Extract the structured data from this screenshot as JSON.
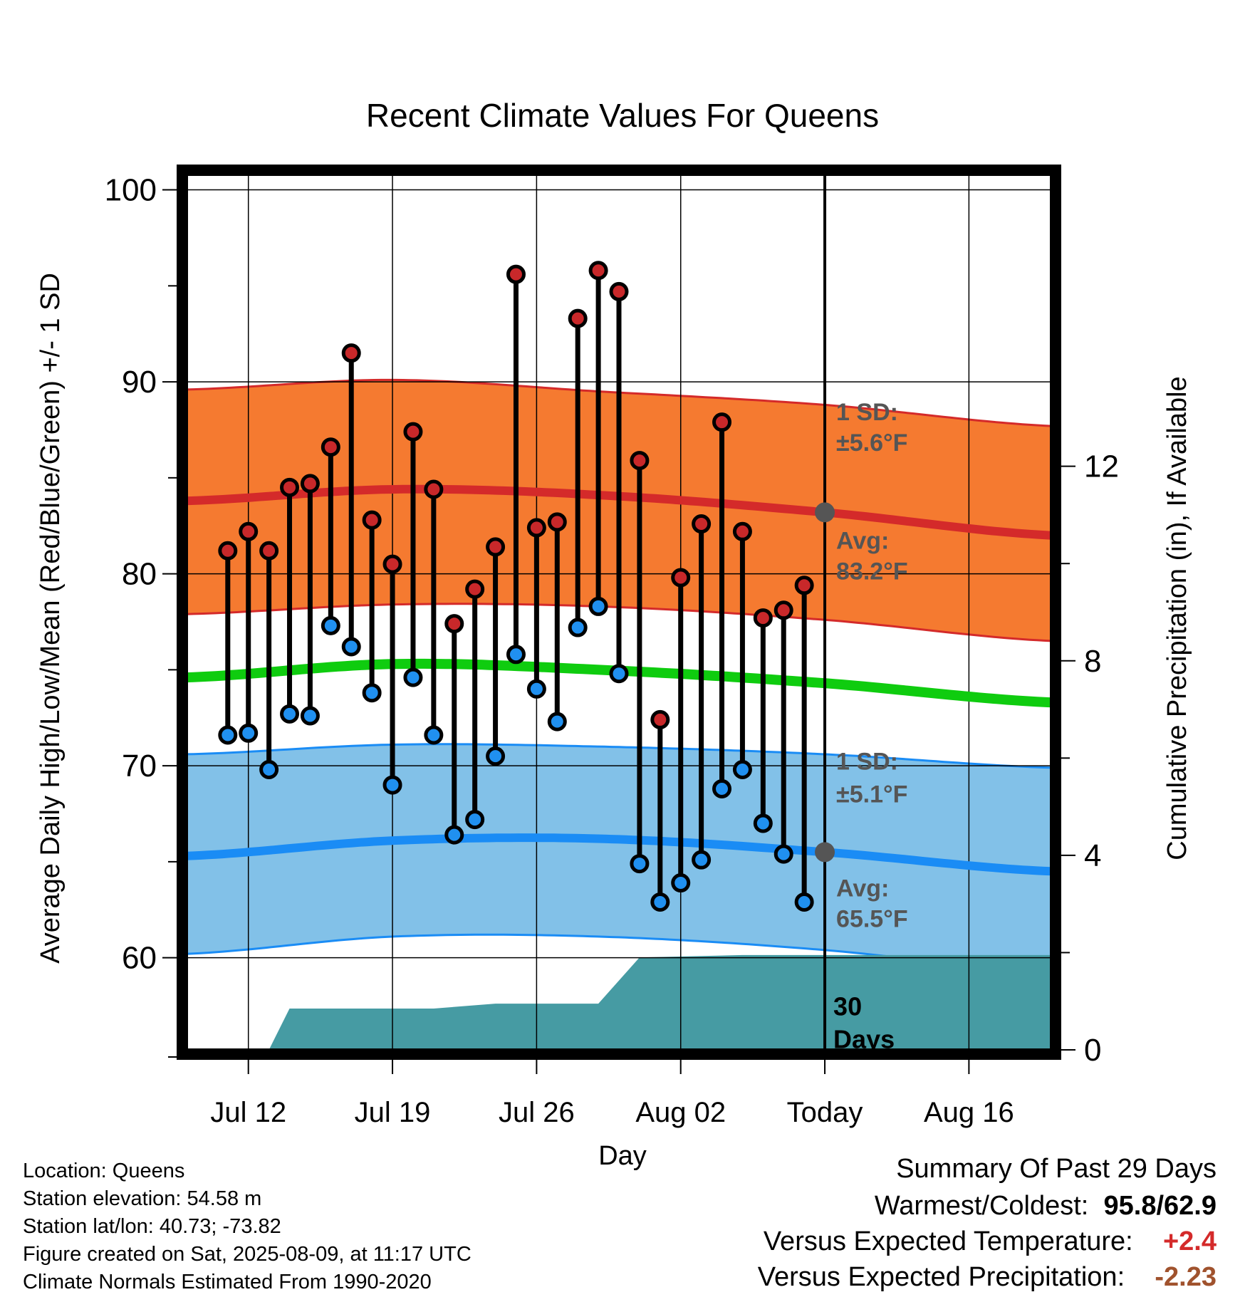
{
  "chart_data": {
    "type": "line",
    "title": "Recent Climate Values For Queens",
    "xlabel": "Day",
    "ylabel": "Average Daily High/Low/Mean (Red/Blue/Green) +/- 1 SD",
    "y2label": "Cumulative Precipitation (in), If Available",
    "ylim": [
      55.2,
      100.8
    ],
    "y2lim": [
      0,
      18
    ],
    "yticks": [
      60,
      70,
      80,
      90,
      100
    ],
    "y2ticks": [
      0,
      4,
      8,
      12
    ],
    "x_start": "Jul 09",
    "x_end": "Aug 20",
    "xticks": [
      "Jul 12",
      "Jul 19",
      "Jul 26",
      "Aug 02",
      "Today",
      "Aug 16"
    ],
    "today": "Aug 09",
    "grid": true,
    "normals": {
      "days": [
        "Jul 09",
        "Jul 19",
        "Jul 29",
        "Aug 09",
        "Aug 20"
      ],
      "high_avg": [
        83.8,
        84.4,
        84.1,
        83.2,
        82.0
      ],
      "high_sd_upper": [
        89.6,
        90.1,
        89.5,
        88.8,
        87.7
      ],
      "high_sd_lower": [
        77.9,
        78.4,
        78.3,
        77.6,
        76.5
      ],
      "mean_avg": [
        74.6,
        75.3,
        75.0,
        74.3,
        73.3
      ],
      "low_avg": [
        65.3,
        66.1,
        66.2,
        65.5,
        64.5
      ],
      "low_sd_upper": [
        70.6,
        71.1,
        71.0,
        70.6,
        69.9
      ],
      "low_sd_lower": [
        60.2,
        61.1,
        61.1,
        60.4,
        59.2
      ]
    },
    "series": [
      {
        "name": "High",
        "x": [
          "Jul 11",
          "Jul 12",
          "Jul 13",
          "Jul 14",
          "Jul 15",
          "Jul 16",
          "Jul 17",
          "Jul 18",
          "Jul 19",
          "Jul 20",
          "Jul 21",
          "Jul 22",
          "Jul 23",
          "Jul 24",
          "Jul 25",
          "Jul 26",
          "Jul 27",
          "Jul 28",
          "Jul 29",
          "Jul 30",
          "Jul 31",
          "Aug 01",
          "Aug 02",
          "Aug 03",
          "Aug 04",
          "Aug 05",
          "Aug 06",
          "Aug 07",
          "Aug 08"
        ],
        "values": [
          81.2,
          82.2,
          81.2,
          84.5,
          84.7,
          86.6,
          91.5,
          82.8,
          80.5,
          87.4,
          84.4,
          77.4,
          79.2,
          81.4,
          95.6,
          82.4,
          82.7,
          93.3,
          95.8,
          94.7,
          85.9,
          72.4,
          79.8,
          82.6,
          87.9,
          82.2,
          77.7,
          78.1,
          79.4
        ]
      },
      {
        "name": "Low",
        "x": [
          "Jul 11",
          "Jul 12",
          "Jul 13",
          "Jul 14",
          "Jul 15",
          "Jul 16",
          "Jul 17",
          "Jul 18",
          "Jul 19",
          "Jul 20",
          "Jul 21",
          "Jul 22",
          "Jul 23",
          "Jul 24",
          "Jul 25",
          "Jul 26",
          "Jul 27",
          "Jul 28",
          "Jul 29",
          "Jul 30",
          "Jul 31",
          "Aug 01",
          "Aug 02",
          "Aug 03",
          "Aug 04",
          "Aug 05",
          "Aug 06",
          "Aug 07",
          "Aug 08"
        ],
        "values": [
          71.6,
          71.7,
          69.8,
          72.7,
          72.6,
          77.3,
          76.2,
          73.8,
          69.0,
          74.6,
          71.6,
          66.4,
          67.2,
          70.5,
          75.8,
          74.0,
          72.3,
          77.2,
          78.3,
          74.8,
          64.9,
          62.9,
          63.9,
          65.1,
          68.8,
          69.8,
          67.0,
          65.4,
          62.9
        ]
      }
    ],
    "precip_cumulative": {
      "x": [
        "Jul 09",
        "Jul 13",
        "Jul 14",
        "Jul 21",
        "Jul 24",
        "Jul 29",
        "Jul 31",
        "Aug 05",
        "Aug 20"
      ],
      "values": [
        0.0,
        0.0,
        0.85,
        0.85,
        0.95,
        0.95,
        1.9,
        1.95,
        1.95
      ]
    },
    "annotations": {
      "high_sd_label": "1 SD:",
      "high_sd_value": "±5.6°F",
      "high_avg_label": "Avg:",
      "high_avg_value": "83.2°F",
      "low_sd_label": "1 SD:",
      "low_sd_value": "±5.1°F",
      "low_avg_label": "Avg:",
      "low_avg_value": "65.5°F",
      "window_line1": "30",
      "window_line2": "Days"
    },
    "colors": {
      "high_band": "#f57a30",
      "high_line": "#d42a2a",
      "low_band": "#82c1e8",
      "low_line": "#1a8cf5",
      "mean_line": "#0fcc0f",
      "precip": "#469ba3",
      "high_dot": "#c8282a",
      "low_dot": "#2090f0",
      "annotation": "#555555"
    }
  },
  "info": {
    "location": "Location: Queens",
    "elevation": "Station elevation: 54.58 m",
    "latlon": "Station lat/lon: 40.73; -73.82",
    "created": "Figure created on Sat, 2025-08-09, at 11:17 UTC",
    "normals": "Climate Normals Estimated From 1990-2020"
  },
  "summary": {
    "heading": "Summary Of Past 29 Days",
    "warm_cold_label": "Warmest/Coldest:",
    "warmest": "95.8",
    "coldest": "62.9",
    "temp_label": "Versus Expected Temperature:",
    "temp_value": "+2.4",
    "temp_color": "#d42a2a",
    "precip_label": "Versus Expected Precipitation:",
    "precip_value": "-2.23",
    "precip_color": "#a0522d"
  }
}
